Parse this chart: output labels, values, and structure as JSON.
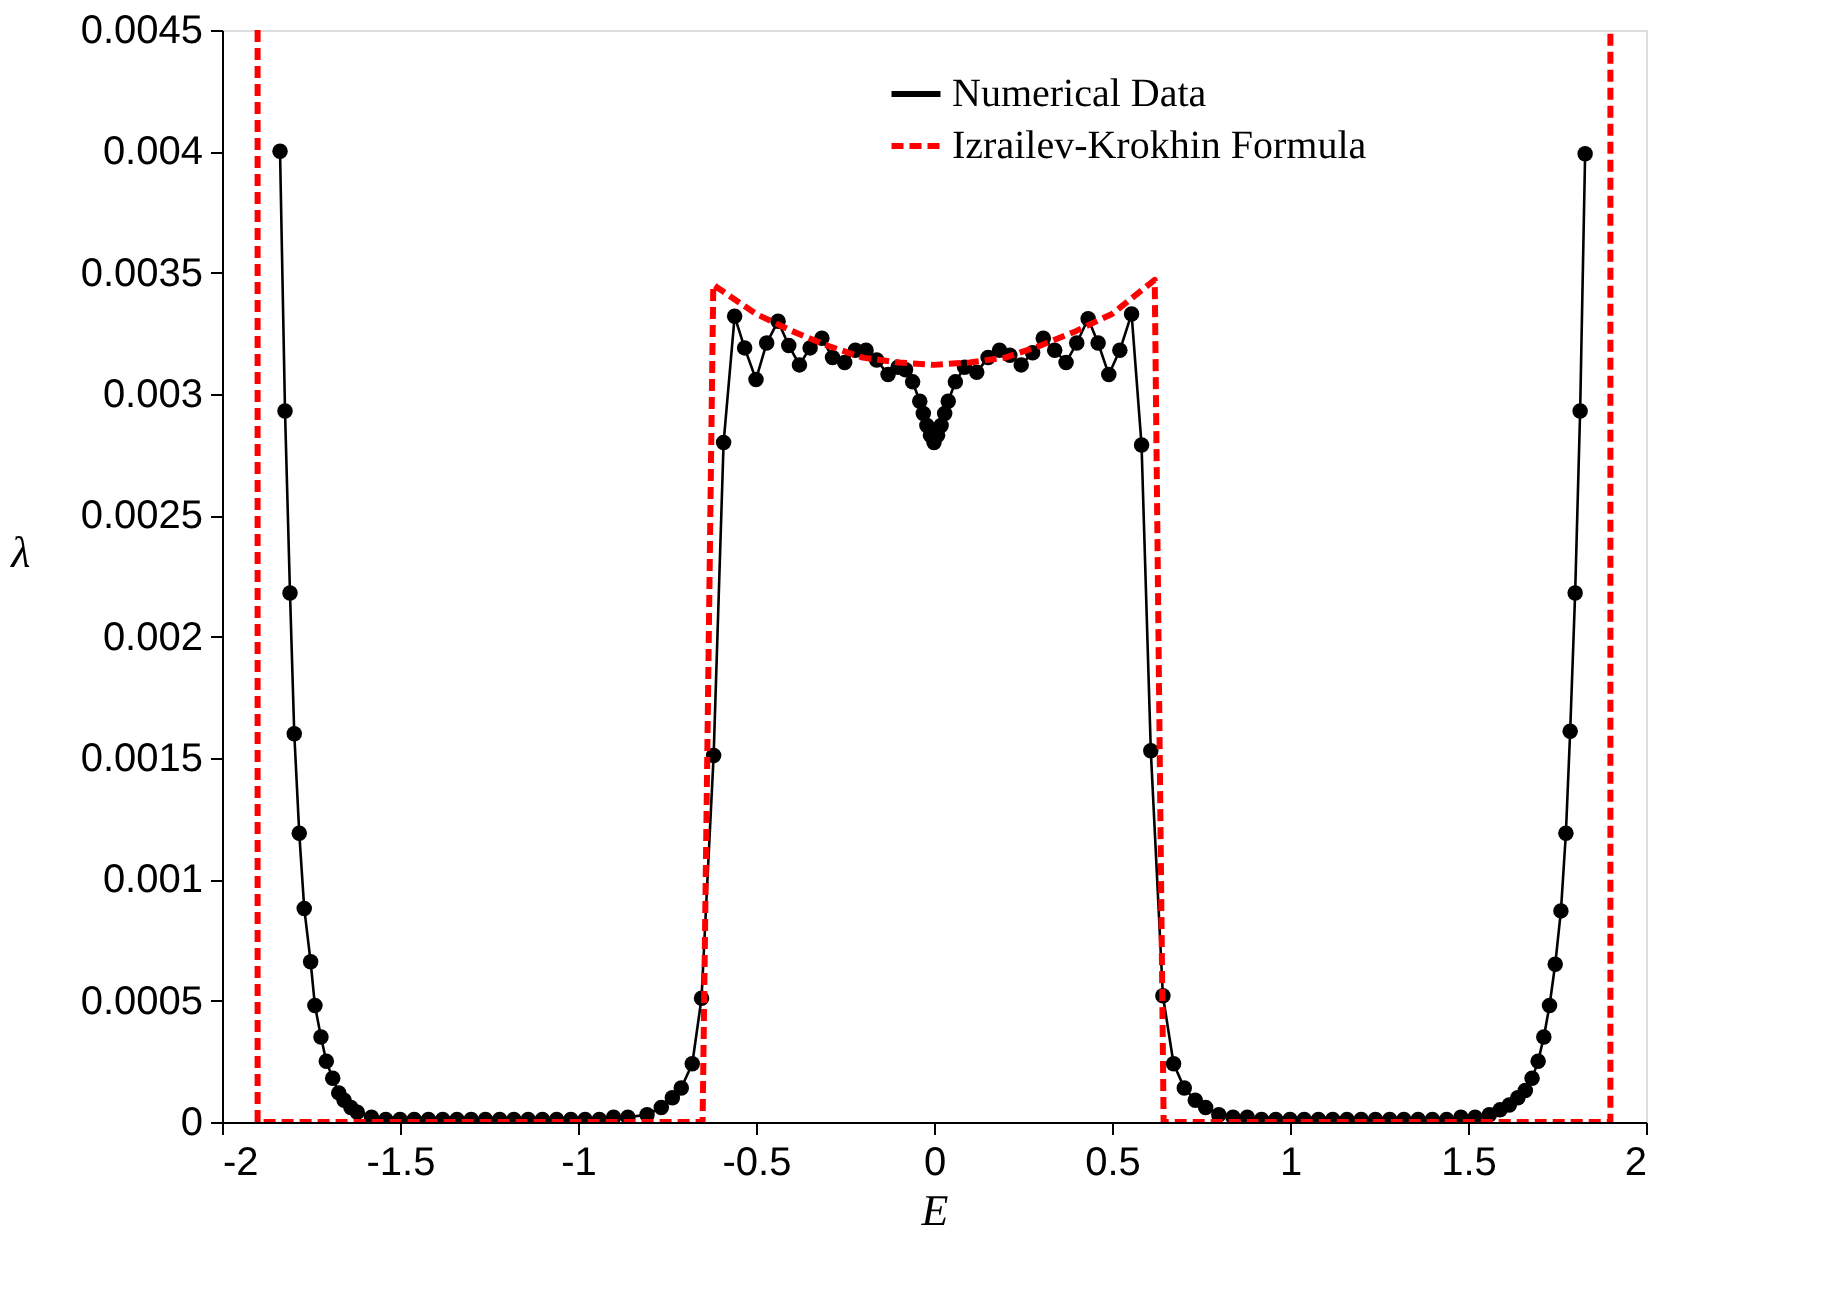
{
  "chart_data": {
    "type": "line",
    "xlabel": "E",
    "ylabel": "λ",
    "xlim": [
      -2,
      2
    ],
    "xticks": [
      -2,
      -1.5,
      -1,
      -0.5,
      0,
      0.5,
      1,
      1.5,
      2
    ],
    "ylim": [
      0,
      0.0045
    ],
    "yticks": [
      0,
      0.0005,
      0.001,
      0.0015,
      0.002,
      0.0025,
      0.003,
      0.0035,
      0.004,
      0.0045
    ],
    "grid": false,
    "legend": "top right",
    "series": [
      {
        "name": "Numerical Data",
        "color": "#000000",
        "marker": "circle",
        "line_style": "solid",
        "x": [
          -1.837,
          -1.823,
          -1.809,
          -1.797,
          -1.783,
          -1.769,
          -1.751,
          -1.739,
          -1.722,
          -1.707,
          -1.689,
          -1.672,
          -1.657,
          -1.638,
          -1.62,
          -1.58,
          -1.54,
          -1.5,
          -1.46,
          -1.42,
          -1.38,
          -1.34,
          -1.3,
          -1.26,
          -1.22,
          -1.18,
          -1.14,
          -1.1,
          -1.06,
          -1.02,
          -0.98,
          -0.94,
          -0.9,
          -0.86,
          -0.806,
          -0.766,
          -0.735,
          -0.71,
          -0.679,
          -0.653,
          -0.619,
          -0.591,
          -0.56,
          -0.532,
          -0.5,
          -0.47,
          -0.438,
          -0.408,
          -0.378,
          -0.348,
          -0.315,
          -0.285,
          -0.251,
          -0.221,
          -0.191,
          -0.161,
          -0.129,
          -0.101,
          -0.08,
          -0.06,
          -0.04,
          -0.03,
          -0.02,
          -0.01,
          0,
          0.01,
          0.02,
          0.03,
          0.04,
          0.06,
          0.086,
          0.12,
          0.152,
          0.184,
          0.213,
          0.245,
          0.277,
          0.307,
          0.339,
          0.371,
          0.401,
          0.433,
          0.461,
          0.491,
          0.522,
          0.555,
          0.583,
          0.609,
          0.643,
          0.673,
          0.703,
          0.734,
          0.763,
          0.8,
          0.84,
          0.88,
          0.92,
          0.96,
          1.0,
          1.04,
          1.08,
          1.12,
          1.16,
          1.2,
          1.24,
          1.28,
          1.32,
          1.36,
          1.4,
          1.44,
          1.48,
          1.52,
          1.56,
          1.59,
          1.616,
          1.64,
          1.661,
          1.68,
          1.697,
          1.713,
          1.729,
          1.745,
          1.761,
          1.775,
          1.787,
          1.801,
          1.815,
          1.829
        ],
        "values": [
          0.004,
          0.00293,
          0.00218,
          0.0016,
          0.00119,
          0.00088,
          0.00066,
          0.00048,
          0.00035,
          0.00025,
          0.00018,
          0.00012,
          9e-05,
          6e-05,
          4e-05,
          2e-05,
          1e-05,
          1e-05,
          1e-05,
          1e-05,
          1e-05,
          1e-05,
          1e-05,
          1e-05,
          1e-05,
          1e-05,
          1e-05,
          1e-05,
          1e-05,
          1e-05,
          1e-05,
          1e-05,
          2e-05,
          2e-05,
          3e-05,
          6e-05,
          0.0001,
          0.00014,
          0.00024,
          0.00051,
          0.00151,
          0.0028,
          0.00332,
          0.00319,
          0.00306,
          0.00321,
          0.0033,
          0.0032,
          0.00312,
          0.00319,
          0.00323,
          0.00315,
          0.00313,
          0.00318,
          0.00318,
          0.00314,
          0.00308,
          0.00311,
          0.0031,
          0.00305,
          0.00297,
          0.00292,
          0.00287,
          0.00283,
          0.0028,
          0.00283,
          0.00287,
          0.00292,
          0.00297,
          0.00305,
          0.00311,
          0.00309,
          0.00315,
          0.00318,
          0.00316,
          0.00312,
          0.00317,
          0.00323,
          0.00318,
          0.00313,
          0.00321,
          0.00331,
          0.00321,
          0.00308,
          0.00318,
          0.00333,
          0.00279,
          0.00153,
          0.00052,
          0.00024,
          0.00014,
          9e-05,
          6e-05,
          3e-05,
          2e-05,
          2e-05,
          1e-05,
          1e-05,
          1e-05,
          1e-05,
          1e-05,
          1e-05,
          1e-05,
          1e-05,
          1e-05,
          1e-05,
          1e-05,
          1e-05,
          1e-05,
          1e-05,
          2e-05,
          2e-05,
          3e-05,
          5e-05,
          7e-05,
          0.0001,
          0.00013,
          0.00018,
          0.00025,
          0.00035,
          0.00048,
          0.00065,
          0.00087,
          0.00119,
          0.00161,
          0.00218,
          0.00293,
          0.00399
        ]
      },
      {
        "name": "Izrailev-Krokhin Formula",
        "color": "#ff0000",
        "marker": "none",
        "line_style": "dashed",
        "x": [
          -1.9,
          -1.9,
          -0.65,
          -0.62,
          -0.5,
          -0.4,
          -0.3,
          -0.2,
          -0.1,
          0,
          0.1,
          0.2,
          0.3,
          0.4,
          0.5,
          0.62,
          0.645,
          1.9,
          1.9
        ],
        "values": [
          0.0045,
          0,
          0,
          0.00345,
          0.00333,
          0.00326,
          0.0032,
          0.00315,
          0.00313,
          0.00312,
          0.00313,
          0.00315,
          0.0032,
          0.00326,
          0.00333,
          0.00347,
          0,
          0,
          0.0045
        ]
      }
    ]
  }
}
